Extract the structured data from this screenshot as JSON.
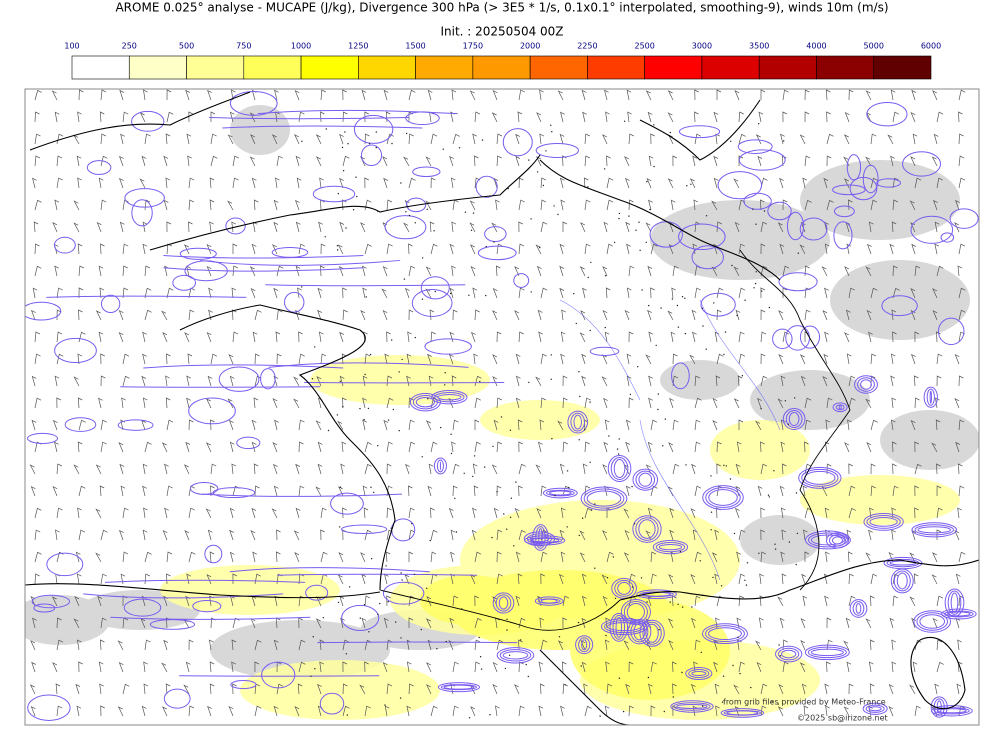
{
  "header": {
    "title": "AROME 0.025° analyse - MUCAPE (J/kg), Divergence 300 hPa (> 3E5 * 1/s, 0.1x0.1° interpolated, smoothing-9), winds 10m (m/s)",
    "init": "Init. : 20250504 00Z"
  },
  "colorbar": {
    "ticks": [
      100,
      250,
      500,
      750,
      1000,
      1250,
      1500,
      1750,
      2000,
      2250,
      2500,
      3000,
      3500,
      4000,
      5000,
      6000
    ],
    "colors": [
      "#ffffff",
      "#ffffc8",
      "#ffff96",
      "#ffff5a",
      "#ffff00",
      "#ffd700",
      "#ffaa00",
      "#ff9900",
      "#ff6600",
      "#ff3c00",
      "#ff0000",
      "#dd0000",
      "#b20000",
      "#8b0000",
      "#600000"
    ]
  },
  "credits": {
    "source": "from grib files provided by Meteo-France",
    "copyright": "©2025 sb@irizone.net"
  }
}
